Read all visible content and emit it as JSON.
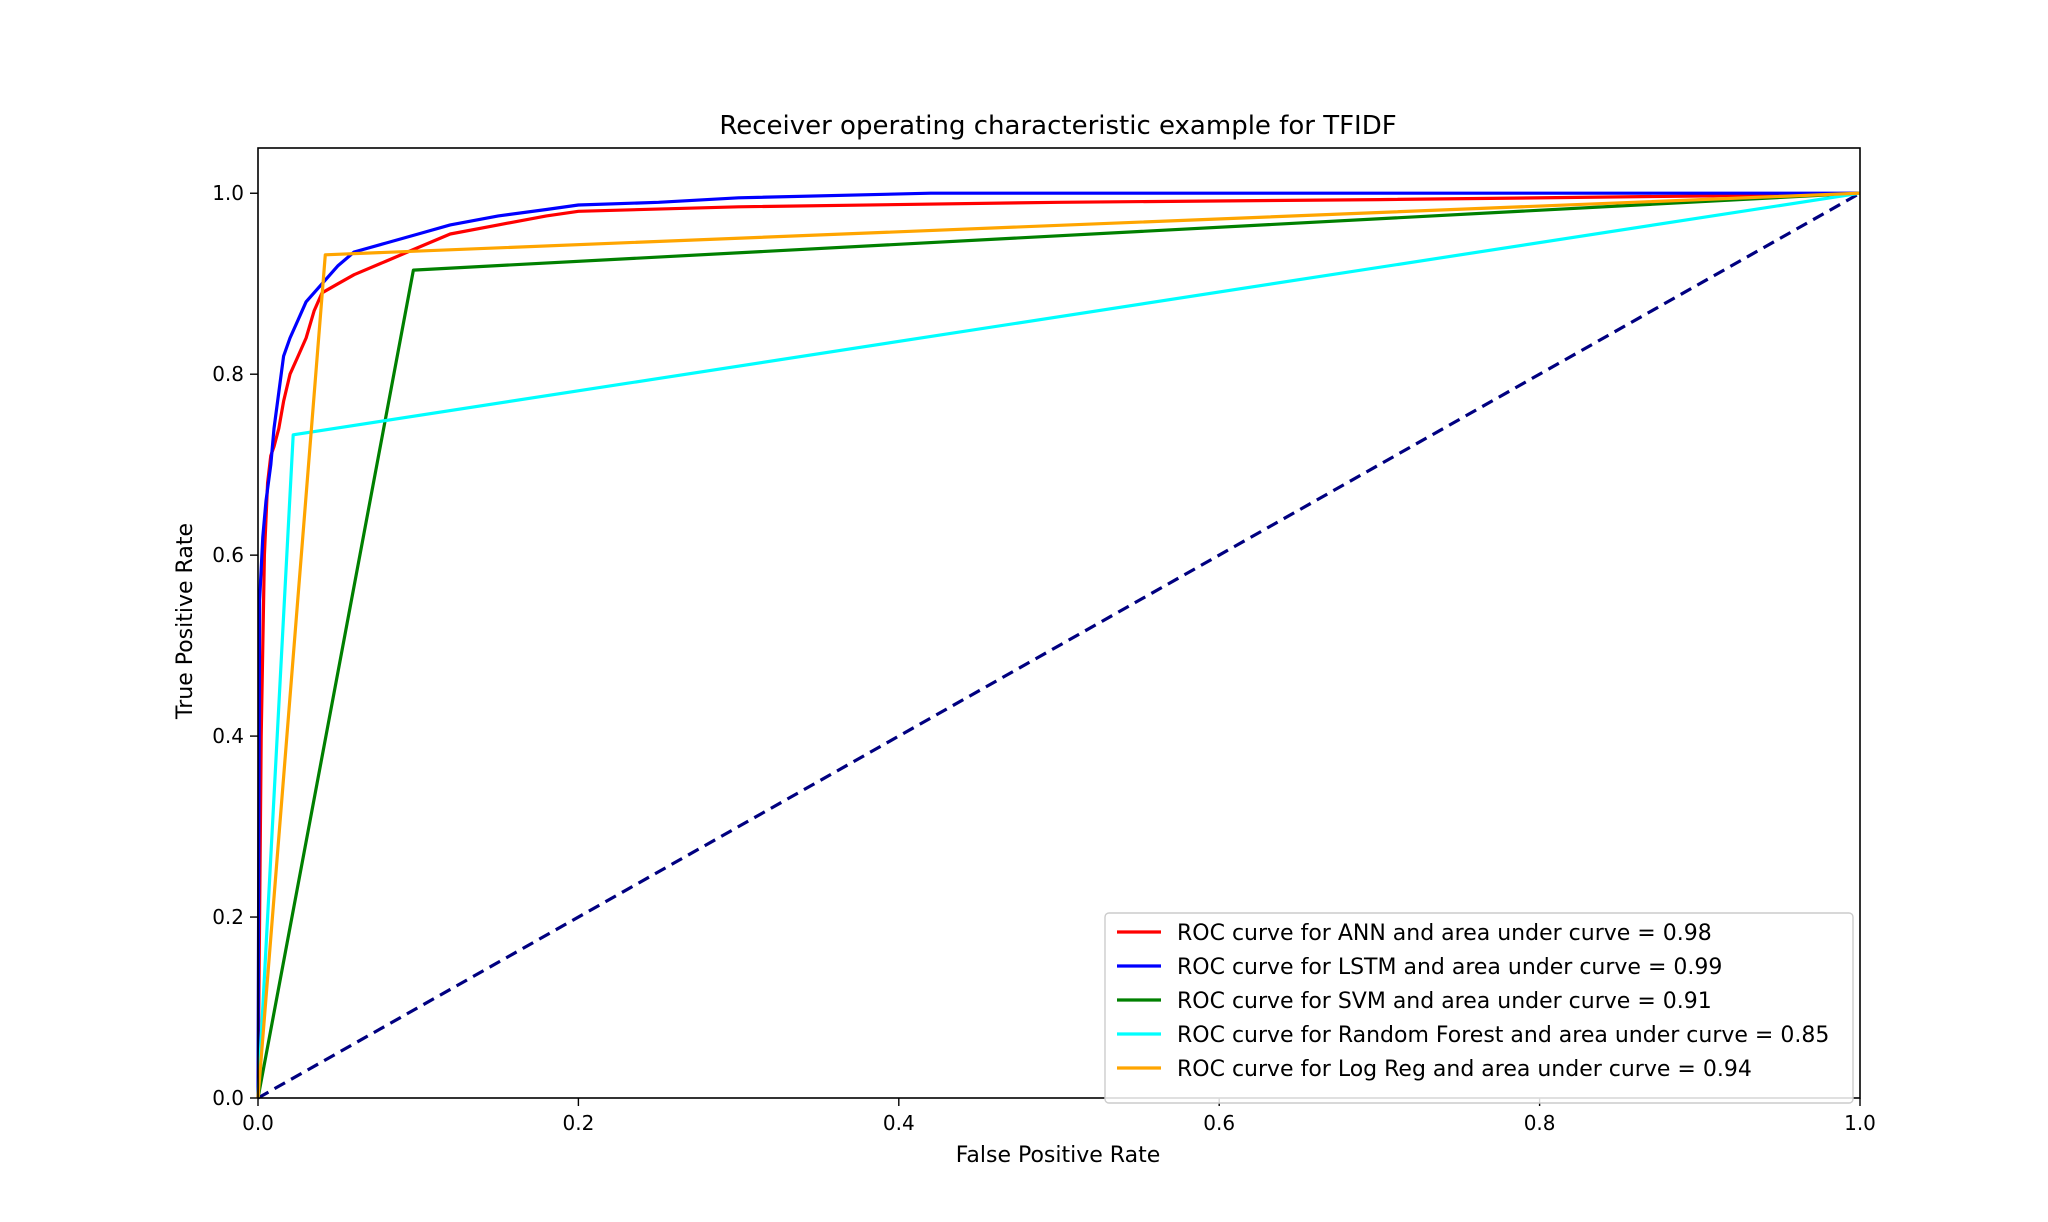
{
  "chart_data": {
    "type": "line",
    "title": "Receiver operating characteristic example for TFIDF",
    "xlabel": "False Positive Rate",
    "ylabel": "True Positive Rate",
    "xlim": [
      0.0,
      1.0
    ],
    "ylim": [
      0.0,
      1.05
    ],
    "xticks": [
      "0.0",
      "0.2",
      "0.4",
      "0.6",
      "0.8",
      "1.0"
    ],
    "yticks": [
      "0.0",
      "0.2",
      "0.4",
      "0.6",
      "0.8",
      "1.0"
    ],
    "grid": false,
    "legend_position": "lower-right",
    "series": [
      {
        "name": "ROC curve for ANN and area under curve = 0.98",
        "color": "#ff0000",
        "x": [
          0.0,
          0.002,
          0.004,
          0.006,
          0.008,
          0.01,
          0.013,
          0.016,
          0.02,
          0.025,
          0.03,
          0.035,
          0.04,
          0.05,
          0.06,
          0.08,
          0.1,
          0.12,
          0.15,
          0.18,
          0.2,
          0.3,
          0.5,
          0.7,
          0.9,
          1.0
        ],
        "y": [
          0.0,
          0.4,
          0.6,
          0.68,
          0.71,
          0.72,
          0.74,
          0.77,
          0.8,
          0.82,
          0.84,
          0.87,
          0.89,
          0.9,
          0.91,
          0.925,
          0.94,
          0.955,
          0.965,
          0.975,
          0.98,
          0.985,
          0.99,
          0.993,
          0.997,
          1.0
        ]
      },
      {
        "name": "ROC curve for LSTM and area under curve = 0.99",
        "color": "#0000ff",
        "x": [
          0.0,
          0.001,
          0.003,
          0.005,
          0.008,
          0.01,
          0.013,
          0.016,
          0.02,
          0.025,
          0.03,
          0.04,
          0.05,
          0.06,
          0.08,
          0.1,
          0.12,
          0.15,
          0.18,
          0.2,
          0.25,
          0.3,
          0.42,
          0.6,
          0.8,
          1.0
        ],
        "y": [
          0.0,
          0.55,
          0.62,
          0.66,
          0.7,
          0.74,
          0.78,
          0.82,
          0.84,
          0.86,
          0.88,
          0.9,
          0.92,
          0.935,
          0.945,
          0.955,
          0.965,
          0.975,
          0.982,
          0.987,
          0.99,
          0.995,
          1.0,
          1.0,
          1.0,
          1.0
        ]
      },
      {
        "name": "ROC curve for SVM and area under curve = 0.91",
        "color": "#008000",
        "x": [
          0.0,
          0.097,
          1.0
        ],
        "y": [
          0.0,
          0.915,
          1.0
        ]
      },
      {
        "name": "ROC curve for Random Forest and area under curve = 0.85",
        "color": "#00ffff",
        "x": [
          0.0,
          0.022,
          1.0
        ],
        "y": [
          0.0,
          0.733,
          1.0
        ]
      },
      {
        "name": "ROC curve for Log Reg and area under curve = 0.94",
        "color": "#ffa500",
        "x": [
          0.0,
          0.042,
          1.0
        ],
        "y": [
          0.0,
          0.932,
          1.0
        ]
      },
      {
        "color": "#000080",
        "dashed": true,
        "x": [
          0.0,
          1.0
        ],
        "y": [
          0.0,
          1.0
        ]
      }
    ]
  }
}
